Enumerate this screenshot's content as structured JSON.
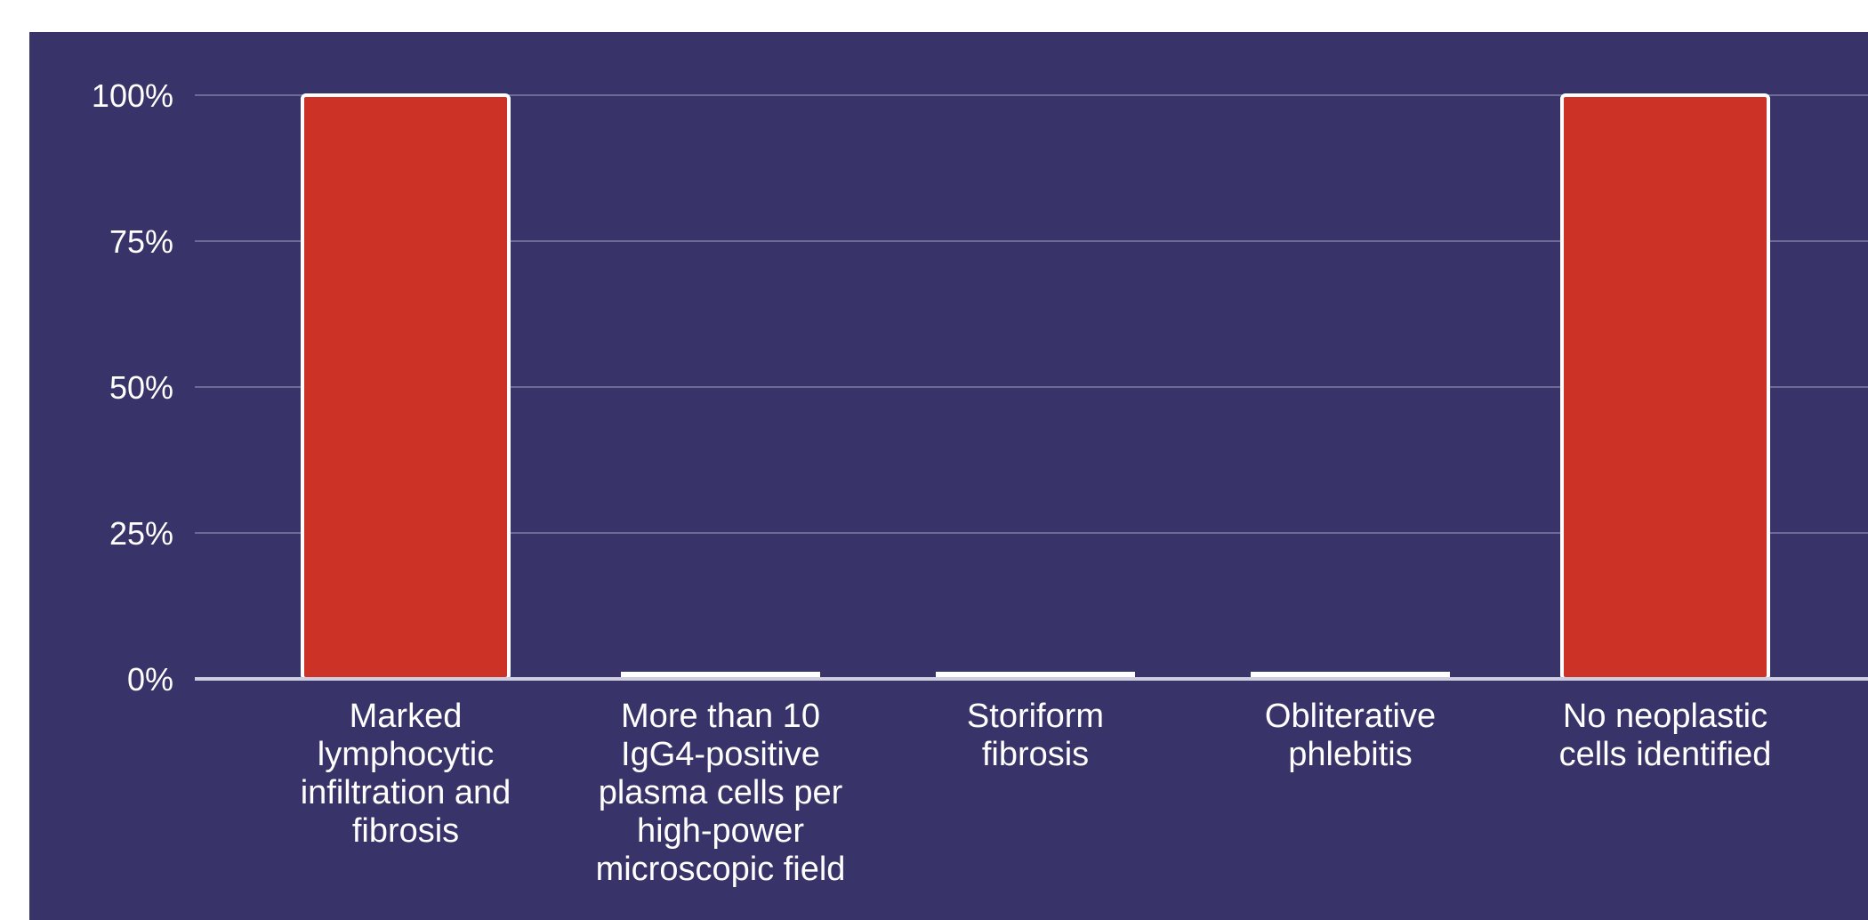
{
  "chart_data": {
    "type": "bar",
    "title": "",
    "xlabel": "",
    "ylabel": "",
    "ylim": [
      0,
      100
    ],
    "yticks": [
      0,
      25,
      50,
      75,
      100
    ],
    "ytick_labels": [
      "0%",
      "25%",
      "50%",
      "75%",
      "100%"
    ],
    "categories": [
      [
        "Marked",
        "lymphocytic",
        "infiltration and",
        "fibrosis"
      ],
      [
        "More than 10",
        "IgG4-positive",
        "plasma cells per",
        "high-power",
        "microscopic field"
      ],
      [
        "Storiform",
        "fibrosis"
      ],
      [
        "Obliterative",
        "phlebitis"
      ],
      [
        "No neoplastic",
        "cells identified"
      ]
    ],
    "values": [
      100,
      0,
      0,
      0,
      100
    ],
    "grid": true,
    "legend": "none",
    "colors": {
      "background": "#383368",
      "bar": "#cc3226",
      "bar_outline": "#ffffff",
      "gridline": "#6e6a98",
      "axis": "#cfcde0",
      "text": "#ffffff"
    }
  }
}
